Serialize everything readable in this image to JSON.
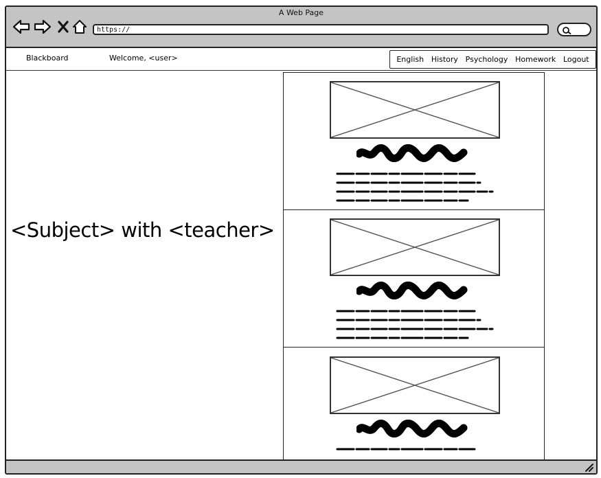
{
  "window": {
    "title": "A Web Page"
  },
  "browser": {
    "url": "https://",
    "icons": [
      "back-arrow-icon",
      "forward-arrow-icon",
      "close-x-icon",
      "home-icon",
      "search-icon"
    ]
  },
  "topbar": {
    "brand": "Blackboard",
    "welcome": "Welcome, <user>",
    "menu": [
      "English",
      "History",
      "Psychology",
      "Homework",
      "Logout"
    ]
  },
  "main": {
    "heading": "<Subject> with <teacher>"
  },
  "cards": {
    "count": 3
  }
}
